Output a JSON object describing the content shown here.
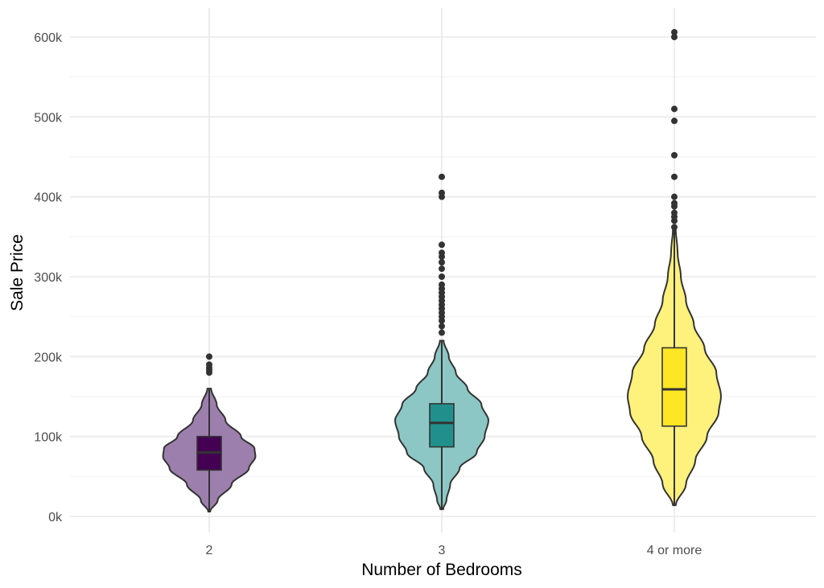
{
  "chart_data": {
    "type": "violin",
    "title": "",
    "xlabel": "Number of Bedrooms",
    "ylabel": "Sale Price",
    "ylim": [
      0,
      620000
    ],
    "yticks": [
      0,
      100000,
      200000,
      300000,
      400000,
      500000,
      600000
    ],
    "ytick_labels": [
      "0k",
      "100k",
      "200k",
      "300k",
      "400k",
      "500k",
      "600k"
    ],
    "categories": [
      "2",
      "3",
      "4 or more"
    ],
    "grid": true,
    "legend": "none",
    "groups": [
      {
        "name": "2",
        "color": "#440154",
        "violin_color": "#9d7fad",
        "min": 6000,
        "max": 160000,
        "density": [
          [
            6000,
            0.02
          ],
          [
            20000,
            0.18
          ],
          [
            40000,
            0.48
          ],
          [
            60000,
            0.85
          ],
          [
            75000,
            0.99
          ],
          [
            85000,
            0.97
          ],
          [
            100000,
            0.68
          ],
          [
            120000,
            0.35
          ],
          [
            140000,
            0.16
          ],
          [
            160000,
            0.04
          ]
        ],
        "q1": 58000,
        "median": 80000,
        "q3": 100000,
        "whisker_low": 6000,
        "whisker_high": 160000,
        "outliers": [
          180000,
          183000,
          186000,
          190000,
          200000
        ]
      },
      {
        "name": "3",
        "color": "#21908c",
        "violin_color": "#8cc7c5",
        "min": 9000,
        "max": 220000,
        "density": [
          [
            9000,
            0.03
          ],
          [
            20000,
            0.1
          ],
          [
            40000,
            0.18
          ],
          [
            60000,
            0.38
          ],
          [
            80000,
            0.75
          ],
          [
            100000,
            0.92
          ],
          [
            120000,
            1.0
          ],
          [
            140000,
            0.85
          ],
          [
            160000,
            0.55
          ],
          [
            180000,
            0.3
          ],
          [
            200000,
            0.15
          ],
          [
            220000,
            0.04
          ]
        ],
        "q1": 87000,
        "median": 117000,
        "q3": 141000,
        "whisker_low": 9000,
        "whisker_high": 220000,
        "outliers": [
          230000,
          238000,
          245000,
          250000,
          255000,
          260000,
          265000,
          270000,
          275000,
          280000,
          285000,
          290000,
          300000,
          310000,
          318000,
          325000,
          330000,
          340000,
          400000,
          405000,
          425000
        ]
      },
      {
        "name": "4 or more",
        "color": "#fde725",
        "violin_color": "#fef17c",
        "min": 14000,
        "max": 360000,
        "density": [
          [
            14000,
            0.03
          ],
          [
            40000,
            0.25
          ],
          [
            70000,
            0.45
          ],
          [
            100000,
            0.7
          ],
          [
            130000,
            0.95
          ],
          [
            150000,
            1.0
          ],
          [
            180000,
            0.9
          ],
          [
            210000,
            0.65
          ],
          [
            240000,
            0.42
          ],
          [
            270000,
            0.25
          ],
          [
            300000,
            0.14
          ],
          [
            330000,
            0.07
          ],
          [
            360000,
            0.03
          ]
        ],
        "q1": 113000,
        "median": 159000,
        "q3": 211000,
        "whisker_low": 14000,
        "whisker_high": 360000,
        "outliers": [
          362000,
          370000,
          375000,
          380000,
          388000,
          392000,
          400000,
          425000,
          452000,
          495000,
          510000,
          600000,
          606000
        ]
      }
    ]
  }
}
